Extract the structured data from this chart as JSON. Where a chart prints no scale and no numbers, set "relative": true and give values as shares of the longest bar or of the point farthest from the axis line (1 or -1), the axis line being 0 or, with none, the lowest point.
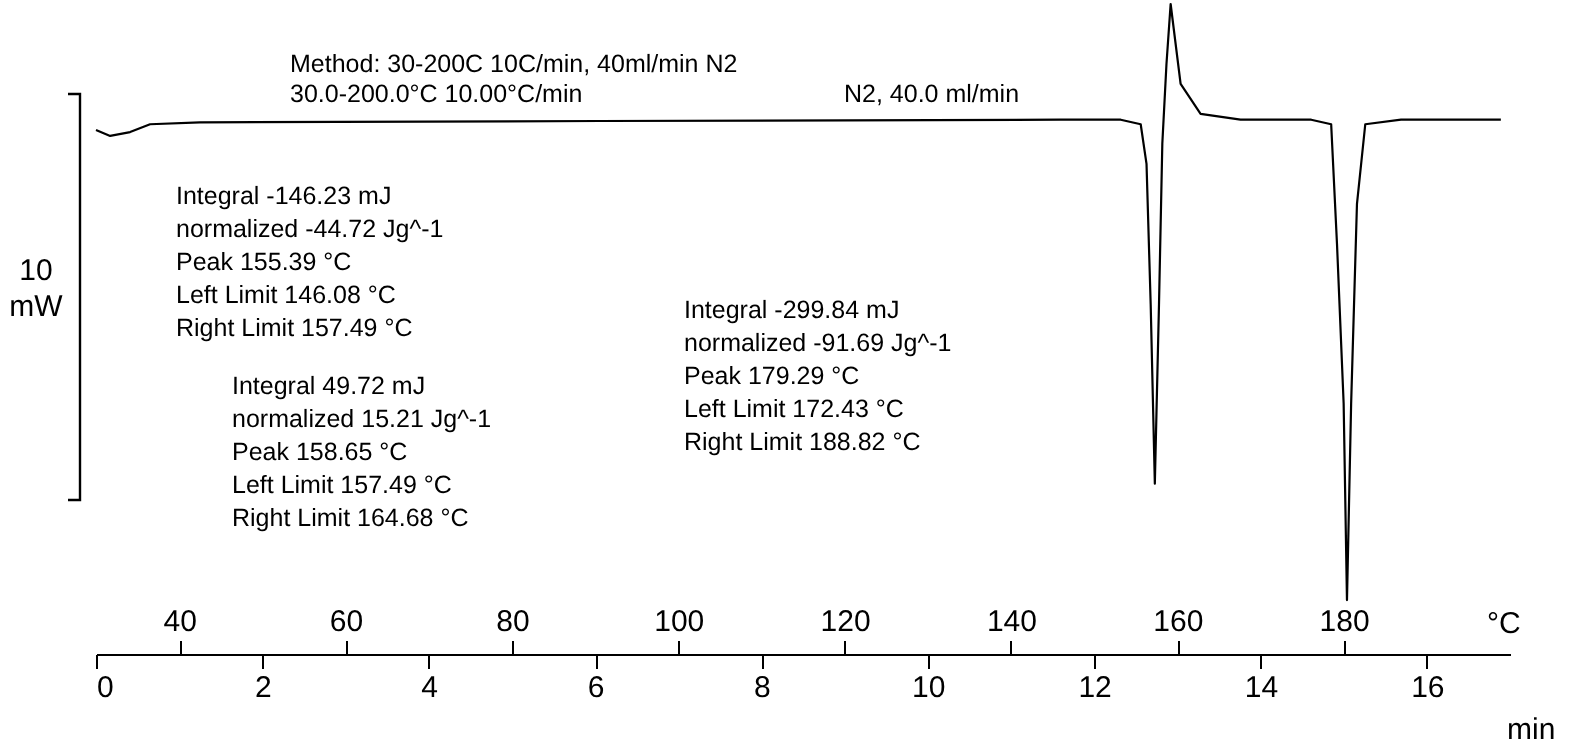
{
  "chart_data": {
    "type": "line",
    "relative": true,
    "xlabel": "min",
    "x2label": "°C",
    "ylabel": "10 mW",
    "xlim": [
      0,
      17
    ],
    "xticks": [
      0,
      2,
      4,
      6,
      8,
      10,
      12,
      14,
      16
    ],
    "x2lim": [
      30,
      200
    ],
    "x2ticks": [
      40,
      60,
      80,
      100,
      120,
      140,
      160,
      180
    ],
    "series": [
      {
        "color": "#000000",
        "x": [
          0,
          0.17,
          0.41,
          0.65,
          1.25,
          6.06,
          11.6,
          12.32,
          12.56,
          12.63,
          12.68,
          12.73,
          12.78,
          12.82,
          12.87,
          12.92,
          13.04,
          13.28,
          13.76,
          14.61,
          14.85,
          14.92,
          15.0,
          15.04,
          15.09,
          15.16,
          15.26,
          15.69,
          16.89
        ],
        "values": [
          0.806,
          0.797,
          0.803,
          0.815,
          0.818,
          0.82,
          0.822,
          0.822,
          0.815,
          0.754,
          0.538,
          0.262,
          0.538,
          0.785,
          0.908,
          1,
          0.877,
          0.831,
          0.822,
          0.822,
          0.815,
          0.631,
          0.385,
          0.083,
          0.385,
          0.692,
          0.815,
          0.822,
          0.822
        ]
      }
    ],
    "annotations": [
      "Method: 30-200C 10C/min, 40ml/min N2",
      "30.0-200.0°C 10.00°C/min",
      "N2, 40.0 ml/min",
      "Integral -146.23 mJ\nnormalized -44.72 Jg^-1\nPeak 155.39 °C\nLeft Limit 146.08 °C\nRight Limit 157.49 °C",
      "Integral 49.72 mJ\nnormalized 15.21 Jg^-1\nPeak 158.65 °C\nLeft Limit 157.49 °C\nRight Limit 164.68 °C",
      "Integral -299.84 mJ\nnormalized -91.69 Jg^-1\nPeak 179.29 °C\nLeft Limit 172.43 °C\nRight Limit 188.82 °C"
    ]
  }
}
